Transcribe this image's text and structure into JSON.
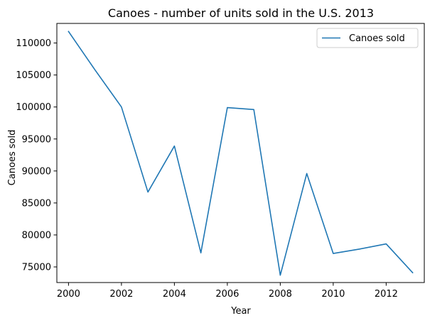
{
  "chart_data": {
    "type": "line",
    "title": "Canoes - number of units sold in the U.S. 2013",
    "xlabel": "Year",
    "ylabel": "Canoes sold",
    "xlim": [
      1999.56,
      2013.44
    ],
    "ylim": [
      72560,
      113060
    ],
    "x_ticks": [
      2000,
      2002,
      2004,
      2006,
      2008,
      2010,
      2012
    ],
    "y_ticks": [
      75000,
      80000,
      85000,
      90000,
      95000,
      100000,
      105000,
      110000
    ],
    "grid": false,
    "legend_position": "top-right",
    "series": [
      {
        "name": "Canoes sold",
        "color": "#1f77b4",
        "x": [
          2000,
          2001,
          2002,
          2003,
          2004,
          2005,
          2006,
          2007,
          2008,
          2009,
          2010,
          2011,
          2012,
          2013
        ],
        "y": [
          111800,
          105800,
          100000,
          86700,
          93900,
          77200,
          99900,
          99600,
          73700,
          89600,
          77100,
          77800,
          78600,
          74100
        ]
      }
    ]
  }
}
